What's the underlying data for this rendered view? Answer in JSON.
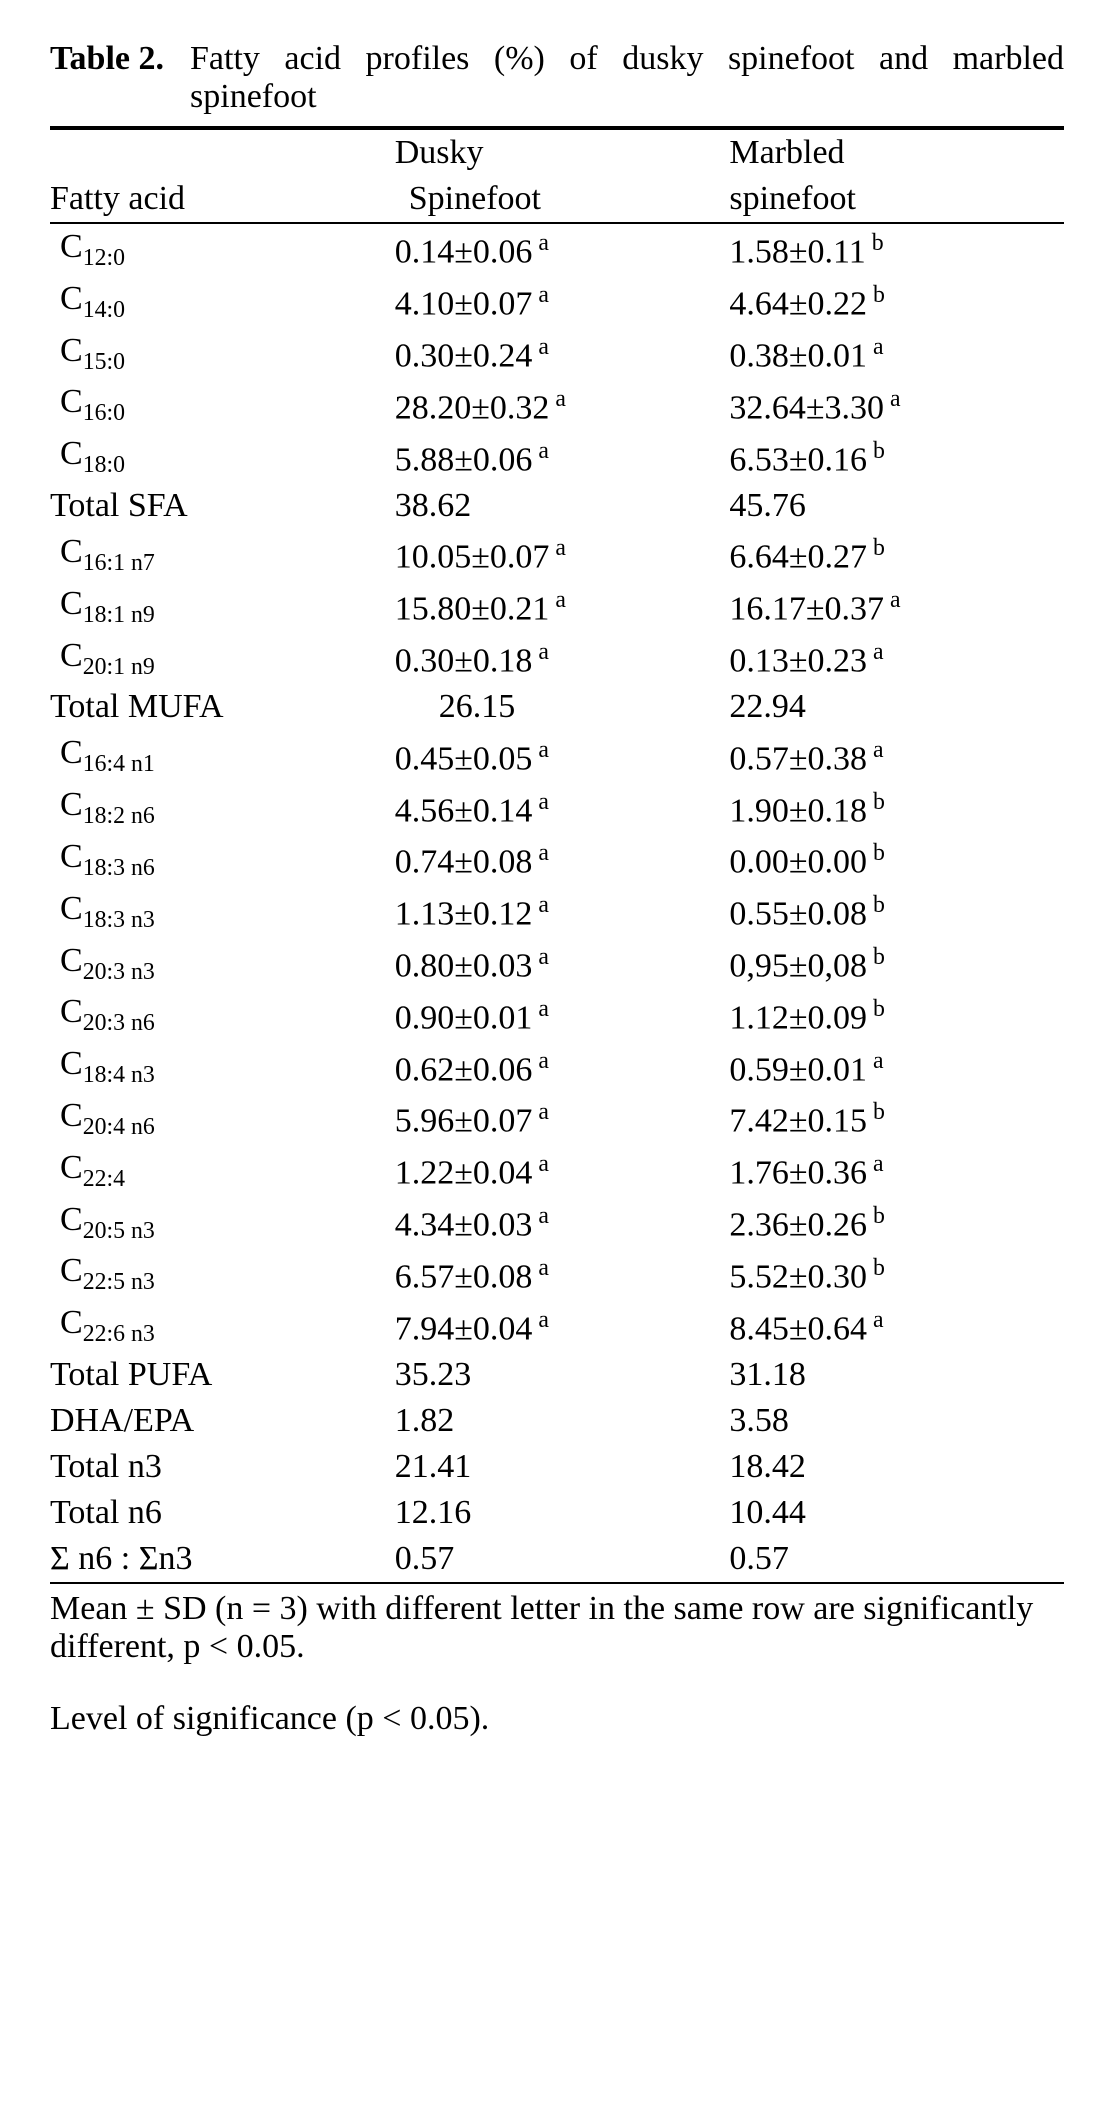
{
  "caption": {
    "label": "Table 2.",
    "title": "Fatty acid profiles (%) of dusky spinefoot and marbled spinefoot"
  },
  "columns": {
    "fa": {
      "line1": "",
      "line2": "Fatty acid"
    },
    "d": {
      "line1": "Dusky",
      "line2": "Spinefoot"
    },
    "m": {
      "line1": "Marbled",
      "line2": "spinefoot"
    }
  },
  "rows": [
    {
      "label_prefix": "C",
      "label_sub": "12:0",
      "d_val": "0.14±0.06",
      "d_sup": "a",
      "m_val": "1.58±0.11",
      "m_sup": "b"
    },
    {
      "label_prefix": "C",
      "label_sub": "14:0",
      "d_val": "4.10±0.07",
      "d_sup": "a",
      "m_val": "4.64±0.22",
      "m_sup": "b"
    },
    {
      "label_prefix": "C",
      "label_sub": "15:0",
      "d_val": "0.30±0.24",
      "d_sup": "a",
      "m_val": "0.38±0.01",
      "m_sup": "a"
    },
    {
      "label_prefix": "C",
      "label_sub": "16:0",
      "d_val": "28.20±0.32",
      "d_sup": "a",
      "m_val": "32.64±3.30",
      "m_sup": "a"
    },
    {
      "label_prefix": "C",
      "label_sub": "18:0",
      "d_val": "5.88±0.06",
      "d_sup": "a",
      "m_val": "6.53±0.16",
      "m_sup": "b"
    },
    {
      "label_plain": "Total SFA",
      "d_val": "38.62",
      "d_sup": "",
      "m_val": "45.76",
      "m_sup": ""
    },
    {
      "label_prefix": "C",
      "label_sub": "16:1 n7",
      "d_val": "10.05±0.07",
      "d_sup": "a",
      "m_val": "6.64±0.27",
      "m_sup": "b"
    },
    {
      "label_prefix": "C",
      "label_sub": "18:1 n9",
      "d_val": "15.80±0.21",
      "d_sup": "a",
      "m_val": "16.17±0.37",
      "m_sup": "a"
    },
    {
      "label_prefix": "C",
      "label_sub": "20:1 n9",
      "d_val": "0.30±0.18",
      "d_sup": "a",
      "m_val": "0.13±0.23",
      "m_sup": "a"
    },
    {
      "label_plain": "Total MUFA",
      "d_val": "26.15",
      "d_sup": "",
      "m_val": "22.94",
      "m_sup": "",
      "d_center": true
    },
    {
      "label_prefix": "C",
      "label_sub": "16:4 n1",
      "d_val": "0.45±0.05",
      "d_sup": "a",
      "m_val": "0.57±0.38",
      "m_sup": "a"
    },
    {
      "label_prefix": "C",
      "label_sub": "18:2 n6",
      "d_val": "4.56±0.14",
      "d_sup": "a",
      "m_val": "1.90±0.18",
      "m_sup": "b"
    },
    {
      "label_prefix": "C",
      "label_sub": "18:3 n6",
      "d_val": "0.74±0.08",
      "d_sup": "a",
      "m_val": "0.00±0.00",
      "m_sup": "b"
    },
    {
      "label_prefix": "C",
      "label_sub": "18:3 n3",
      "d_val": "1.13±0.12",
      "d_sup": "a",
      "m_val": "0.55±0.08",
      "m_sup": "b"
    },
    {
      "label_prefix": "C",
      "label_sub": "20:3 n3",
      "d_val": "0.80±0.03",
      "d_sup": "a",
      "m_val": "0,95±0,08",
      "m_sup": "b"
    },
    {
      "label_prefix": "C",
      "label_sub": "20:3 n6",
      "d_val": "0.90±0.01",
      "d_sup": "a",
      "m_val": "1.12±0.09",
      "m_sup": "b"
    },
    {
      "label_prefix": "C",
      "label_sub": "18:4 n3",
      "d_val": "0.62±0.06",
      "d_sup": "a",
      "m_val": "0.59±0.01",
      "m_sup": "a"
    },
    {
      "label_prefix": "C",
      "label_sub": "20:4 n6",
      "d_val": "5.96±0.07",
      "d_sup": "a",
      "m_val": "7.42±0.15",
      "m_sup": "b"
    },
    {
      "label_prefix": "C",
      "label_sub": "22:4",
      "d_val": "1.22±0.04",
      "d_sup": "a",
      "m_val": "1.76±0.36",
      "m_sup": "a"
    },
    {
      "label_prefix": "C",
      "label_sub": "20:5 n3",
      "d_val": "4.34±0.03",
      "d_sup": "a",
      "m_val": "2.36±0.26",
      "m_sup": "b"
    },
    {
      "label_prefix": "C",
      "label_sub": "22:5 n3",
      "d_val": "6.57±0.08",
      "d_sup": "a",
      "m_val": "5.52±0.30",
      "m_sup": "b"
    },
    {
      "label_prefix": "C",
      "label_sub": "22:6 n3",
      "d_val": "7.94±0.04",
      "d_sup": "a",
      "m_val": "8.45±0.64",
      "m_sup": "a"
    },
    {
      "label_plain": "Total PUFA",
      "d_val": "35.23",
      "d_sup": "",
      "m_val": "31.18",
      "m_sup": ""
    },
    {
      "label_plain": "DHA/EPA",
      "d_val": "1.82",
      "d_sup": "",
      "m_val": "3.58",
      "m_sup": ""
    },
    {
      "label_plain": "Total n3",
      "d_val": "21.41",
      "d_sup": "",
      "m_val": "18.42",
      "m_sup": ""
    },
    {
      "label_plain": "Total n6",
      "d_val": "12.16",
      "d_sup": "",
      "m_val": "10.44",
      "m_sup": ""
    },
    {
      "label_plain": "Σ n6 : Σn3",
      "d_val": "0.57",
      "d_sup": "",
      "m_val": "0.57",
      "m_sup": ""
    }
  ],
  "footnote1": "Mean ± SD (n = 3) with different letter in the same row are significantly different, p < 0.05.",
  "footnote2": "Level of significance (p < 0.05)."
}
